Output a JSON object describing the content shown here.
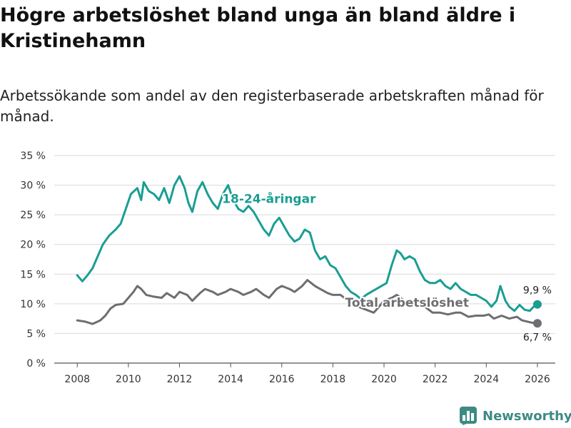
{
  "header": {
    "title": "Högre arbetslöshet bland unga än bland äldre i Kristinehamn",
    "subtitle": "Arbetssökande som andel av den registerbaserade arbetskraften månad för månad."
  },
  "brand": {
    "name": "Newsworthy",
    "icon": "bar-chart-logo-icon",
    "color": "#3d8a84"
  },
  "chart_data": {
    "type": "line",
    "title": "Högre arbetslöshet bland unga än bland äldre i Kristinehamn",
    "subtitle": "Arbetssökande som andel av den registerbaserade arbetskraften månad för månad.",
    "xlabel": "",
    "ylabel": "",
    "xlim": [
      2007.1,
      2026.7
    ],
    "ylim": [
      0,
      35
    ],
    "grid": true,
    "x_ticks": [
      2008,
      2010,
      2012,
      2014,
      2016,
      2018,
      2020,
      2022,
      2024,
      2026
    ],
    "x_tick_labels": [
      "2008",
      "2010",
      "2012",
      "2014",
      "2016",
      "2018",
      "2020",
      "2022",
      "2024",
      "2026"
    ],
    "y_ticks": [
      0,
      5,
      10,
      15,
      20,
      25,
      30,
      35
    ],
    "y_tick_labels": [
      "0 %",
      "5 %",
      "10 %",
      "15 %",
      "20 %",
      "25 %",
      "30 %",
      "35 %"
    ],
    "series": [
      {
        "name": "18-24-åringar",
        "label": "18-24-åringar",
        "color": "#1a9e93",
        "label_at": [
          2015.5,
          27.0
        ],
        "end_label": "9,9 %",
        "points": [
          [
            2008.0,
            14.8
          ],
          [
            2008.2,
            13.8
          ],
          [
            2008.4,
            14.8
          ],
          [
            2008.6,
            16.0
          ],
          [
            2008.75,
            17.5
          ],
          [
            2009.0,
            20.0
          ],
          [
            2009.25,
            21.5
          ],
          [
            2009.5,
            22.5
          ],
          [
            2009.7,
            23.5
          ],
          [
            2009.9,
            26.0
          ],
          [
            2010.1,
            28.5
          ],
          [
            2010.35,
            29.5
          ],
          [
            2010.5,
            27.5
          ],
          [
            2010.6,
            30.5
          ],
          [
            2010.8,
            29.0
          ],
          [
            2011.0,
            28.5
          ],
          [
            2011.2,
            27.5
          ],
          [
            2011.4,
            29.5
          ],
          [
            2011.6,
            27.0
          ],
          [
            2011.8,
            30.0
          ],
          [
            2012.0,
            31.5
          ],
          [
            2012.2,
            29.5
          ],
          [
            2012.35,
            27.0
          ],
          [
            2012.5,
            25.5
          ],
          [
            2012.7,
            29.0
          ],
          [
            2012.9,
            30.5
          ],
          [
            2013.1,
            28.5
          ],
          [
            2013.3,
            27.0
          ],
          [
            2013.5,
            26.0
          ],
          [
            2013.7,
            28.5
          ],
          [
            2013.9,
            30.0
          ],
          [
            2014.1,
            27.5
          ],
          [
            2014.3,
            26.0
          ],
          [
            2014.5,
            25.5
          ],
          [
            2014.7,
            26.5
          ],
          [
            2014.9,
            25.5
          ],
          [
            2015.1,
            24.0
          ],
          [
            2015.3,
            22.5
          ],
          [
            2015.5,
            21.5
          ],
          [
            2015.7,
            23.5
          ],
          [
            2015.9,
            24.5
          ],
          [
            2016.1,
            23.0
          ],
          [
            2016.3,
            21.5
          ],
          [
            2016.5,
            20.5
          ],
          [
            2016.7,
            21.0
          ],
          [
            2016.9,
            22.5
          ],
          [
            2017.1,
            22.0
          ],
          [
            2017.3,
            19.0
          ],
          [
            2017.5,
            17.5
          ],
          [
            2017.7,
            18.0
          ],
          [
            2017.9,
            16.5
          ],
          [
            2018.1,
            16.0
          ],
          [
            2018.3,
            14.5
          ],
          [
            2018.5,
            13.0
          ],
          [
            2018.7,
            12.0
          ],
          [
            2018.9,
            11.5
          ],
          [
            2019.1,
            10.8
          ],
          [
            2019.3,
            11.5
          ],
          [
            2019.5,
            12.0
          ],
          [
            2019.7,
            12.5
          ],
          [
            2019.9,
            13.0
          ],
          [
            2020.1,
            13.5
          ],
          [
            2020.3,
            16.5
          ],
          [
            2020.5,
            19.0
          ],
          [
            2020.65,
            18.5
          ],
          [
            2020.8,
            17.5
          ],
          [
            2021.0,
            18.0
          ],
          [
            2021.2,
            17.5
          ],
          [
            2021.4,
            15.5
          ],
          [
            2021.6,
            14.0
          ],
          [
            2021.8,
            13.5
          ],
          [
            2022.0,
            13.5
          ],
          [
            2022.2,
            14.0
          ],
          [
            2022.4,
            13.0
          ],
          [
            2022.6,
            12.5
          ],
          [
            2022.8,
            13.5
          ],
          [
            2023.0,
            12.5
          ],
          [
            2023.2,
            12.0
          ],
          [
            2023.4,
            11.5
          ],
          [
            2023.6,
            11.5
          ],
          [
            2023.8,
            11.0
          ],
          [
            2024.0,
            10.5
          ],
          [
            2024.2,
            9.5
          ],
          [
            2024.4,
            10.5
          ],
          [
            2024.55,
            13.0
          ],
          [
            2024.75,
            10.5
          ],
          [
            2024.9,
            9.5
          ],
          [
            2025.1,
            8.8
          ],
          [
            2025.3,
            9.8
          ],
          [
            2025.5,
            9.0
          ],
          [
            2025.7,
            8.8
          ],
          [
            2025.85,
            9.5
          ],
          [
            2026.0,
            9.9
          ]
        ]
      },
      {
        "name": "Total arbetslöshet",
        "label": "Total arbetslöshet",
        "color": "#6e6e72",
        "label_at": [
          2020.9,
          9.5
        ],
        "end_label": "6,7 %",
        "points": [
          [
            2008.0,
            7.2
          ],
          [
            2008.3,
            7.0
          ],
          [
            2008.6,
            6.6
          ],
          [
            2008.9,
            7.2
          ],
          [
            2009.1,
            8.0
          ],
          [
            2009.3,
            9.2
          ],
          [
            2009.5,
            9.8
          ],
          [
            2009.8,
            10.0
          ],
          [
            2010.0,
            11.0
          ],
          [
            2010.2,
            12.0
          ],
          [
            2010.35,
            13.0
          ],
          [
            2010.5,
            12.5
          ],
          [
            2010.7,
            11.5
          ],
          [
            2011.0,
            11.2
          ],
          [
            2011.3,
            11.0
          ],
          [
            2011.5,
            11.8
          ],
          [
            2011.8,
            11.0
          ],
          [
            2012.0,
            12.0
          ],
          [
            2012.3,
            11.5
          ],
          [
            2012.5,
            10.5
          ],
          [
            2012.8,
            11.8
          ],
          [
            2013.0,
            12.5
          ],
          [
            2013.3,
            12.0
          ],
          [
            2013.5,
            11.5
          ],
          [
            2013.8,
            12.0
          ],
          [
            2014.0,
            12.5
          ],
          [
            2014.3,
            12.0
          ],
          [
            2014.5,
            11.5
          ],
          [
            2014.8,
            12.0
          ],
          [
            2015.0,
            12.5
          ],
          [
            2015.3,
            11.5
          ],
          [
            2015.5,
            11.0
          ],
          [
            2015.8,
            12.5
          ],
          [
            2016.0,
            13.0
          ],
          [
            2016.3,
            12.5
          ],
          [
            2016.5,
            12.0
          ],
          [
            2016.8,
            13.0
          ],
          [
            2017.0,
            14.0
          ],
          [
            2017.3,
            13.0
          ],
          [
            2017.5,
            12.5
          ],
          [
            2017.8,
            11.8
          ],
          [
            2018.0,
            11.5
          ],
          [
            2018.3,
            11.5
          ],
          [
            2018.6,
            10.5
          ],
          [
            2018.8,
            10.0
          ],
          [
            2019.0,
            9.5
          ],
          [
            2019.3,
            9.0
          ],
          [
            2019.6,
            8.5
          ],
          [
            2019.8,
            9.5
          ],
          [
            2020.0,
            10.5
          ],
          [
            2020.3,
            11.0
          ],
          [
            2020.5,
            11.5
          ],
          [
            2020.8,
            10.5
          ],
          [
            2021.0,
            10.0
          ],
          [
            2021.3,
            9.5
          ],
          [
            2021.6,
            9.5
          ],
          [
            2021.9,
            8.5
          ],
          [
            2022.2,
            8.5
          ],
          [
            2022.5,
            8.2
          ],
          [
            2022.8,
            8.5
          ],
          [
            2023.0,
            8.5
          ],
          [
            2023.3,
            7.8
          ],
          [
            2023.6,
            8.0
          ],
          [
            2023.9,
            8.0
          ],
          [
            2024.1,
            8.2
          ],
          [
            2024.3,
            7.5
          ],
          [
            2024.6,
            8.0
          ],
          [
            2024.9,
            7.5
          ],
          [
            2025.2,
            7.8
          ],
          [
            2025.4,
            7.2
          ],
          [
            2025.6,
            7.0
          ],
          [
            2025.8,
            6.8
          ],
          [
            2026.0,
            6.7
          ]
        ]
      }
    ]
  }
}
